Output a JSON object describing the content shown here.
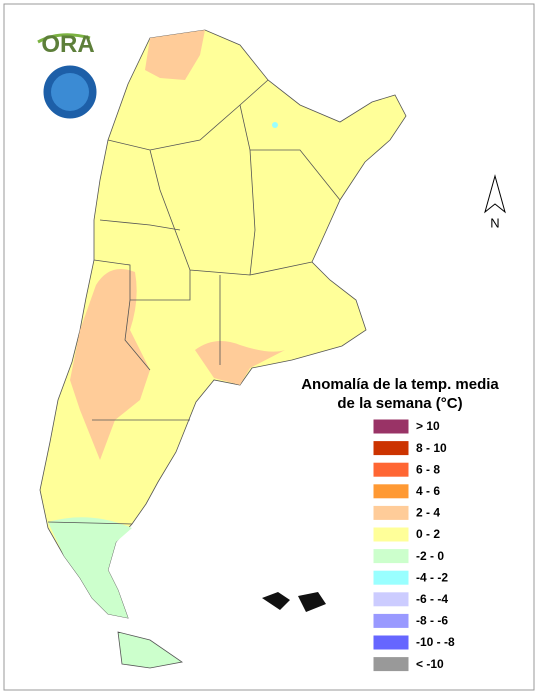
{
  "logo": {
    "text": "ORA"
  },
  "title": [
    "Anomalía de la temp. media",
    "de la semana (°C)"
  ],
  "north": "N",
  "legend": [
    {
      "label": "> 10",
      "color": "#993366"
    },
    {
      "label": "8 - 10",
      "color": "#cc3300"
    },
    {
      "label": "6 - 8",
      "color": "#ff6633"
    },
    {
      "label": "4 - 6",
      "color": "#ff9933"
    },
    {
      "label": "2 - 4",
      "color": "#ffcc99"
    },
    {
      "label": "0 - 2",
      "color": "#ffff99"
    },
    {
      "label": "-2 - 0",
      "color": "#ccffcc"
    },
    {
      "label": "-4 - -2",
      "color": "#99ffff"
    },
    {
      "label": "-6 - -4",
      "color": "#ccccff"
    },
    {
      "label": "-8 - -6",
      "color": "#9999ff"
    },
    {
      "label": "-10 - -8",
      "color": "#6666ff"
    },
    {
      "label": "< -10",
      "color": "#999999"
    }
  ]
}
